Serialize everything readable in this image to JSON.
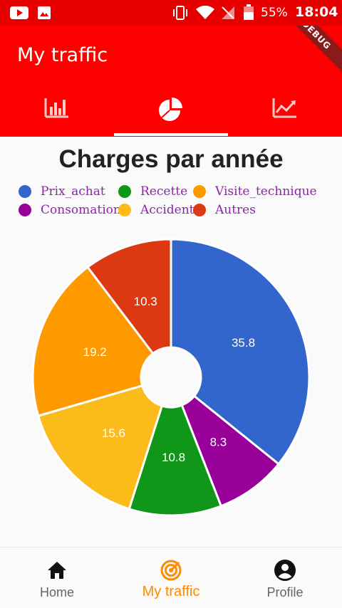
{
  "status_bar": {
    "battery": "55%",
    "time": "18:04"
  },
  "app_bar": {
    "title": "My traffic",
    "debug_badge": "DEBUG"
  },
  "tabs": [
    {
      "icon": "bar-chart-icon",
      "active": false
    },
    {
      "icon": "pie-chart-icon",
      "active": true
    },
    {
      "icon": "line-chart-icon",
      "active": false
    }
  ],
  "colors": {
    "app_bar": "#ff0000",
    "status_bar": "#e60000",
    "active_nav": "#ff8c00",
    "legend_text": "#8e24aa"
  },
  "chart_data": {
    "type": "pie",
    "title": "Charges par année",
    "donut_hole": true,
    "legend_position": "top",
    "slices": [
      {
        "name": "Prix_achat",
        "value": 35.8,
        "color": "#3366cc"
      },
      {
        "name": "Consomation",
        "value": 8.3,
        "color": "#990099"
      },
      {
        "name": "Recette",
        "value": 10.8,
        "color": "#109618"
      },
      {
        "name": "Accident",
        "value": 15.6,
        "color": "#fbbc1b"
      },
      {
        "name": "Visite_technique",
        "value": 19.2,
        "color": "#ff9900"
      },
      {
        "name": "Autres",
        "value": 10.3,
        "color": "#dc3912"
      }
    ]
  },
  "legend": [
    {
      "name": "Prix_achat",
      "color": "#3366cc"
    },
    {
      "name": "Recette",
      "color": "#109618"
    },
    {
      "name": "Visite_technique",
      "color": "#ff9900"
    },
    {
      "name": "Consomation",
      "color": "#990099"
    },
    {
      "name": "Accident",
      "color": "#fbbc1b"
    },
    {
      "name": "Autres",
      "color": "#dc3912"
    }
  ],
  "bottom_nav": [
    {
      "label": "Home",
      "icon": "home-icon",
      "active": false
    },
    {
      "label": "My traffic",
      "icon": "traffic-icon",
      "active": true
    },
    {
      "label": "Profile",
      "icon": "profile-icon",
      "active": false
    }
  ]
}
